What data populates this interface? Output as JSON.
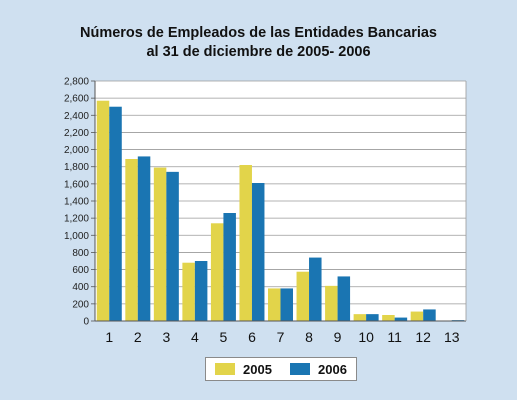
{
  "chart_data": {
    "type": "bar",
    "title": "Números de Empleados de las Entidades Bancarias",
    "subtitle": "al 31 de diciembre de 2005- 2006",
    "categories": [
      "1",
      "2",
      "3",
      "4",
      "5",
      "6",
      "7",
      "8",
      "9",
      "10",
      "11",
      "12",
      "13"
    ],
    "series": [
      {
        "name": "2005",
        "color": "#e2d44a",
        "values": [
          2570,
          1890,
          1790,
          680,
          1140,
          1820,
          380,
          575,
          410,
          80,
          70,
          110,
          5
        ]
      },
      {
        "name": "2006",
        "color": "#1a75b2",
        "values": [
          2500,
          1920,
          1740,
          700,
          1260,
          1610,
          380,
          740,
          520,
          80,
          40,
          135,
          10
        ]
      }
    ],
    "ylim": [
      0,
      2800
    ],
    "yticks": [
      "0",
      "200",
      "400",
      "600",
      "800",
      "1,000",
      "1,200",
      "1,400",
      "1,600",
      "1,800",
      "2,000",
      "2,200",
      "2,400",
      "2,600",
      "2,800"
    ],
    "ytick_values": [
      0,
      200,
      400,
      600,
      800,
      1000,
      1200,
      1400,
      1600,
      1800,
      2000,
      2200,
      2400,
      2600,
      2800
    ],
    "grid": true,
    "legend": "bottom"
  }
}
